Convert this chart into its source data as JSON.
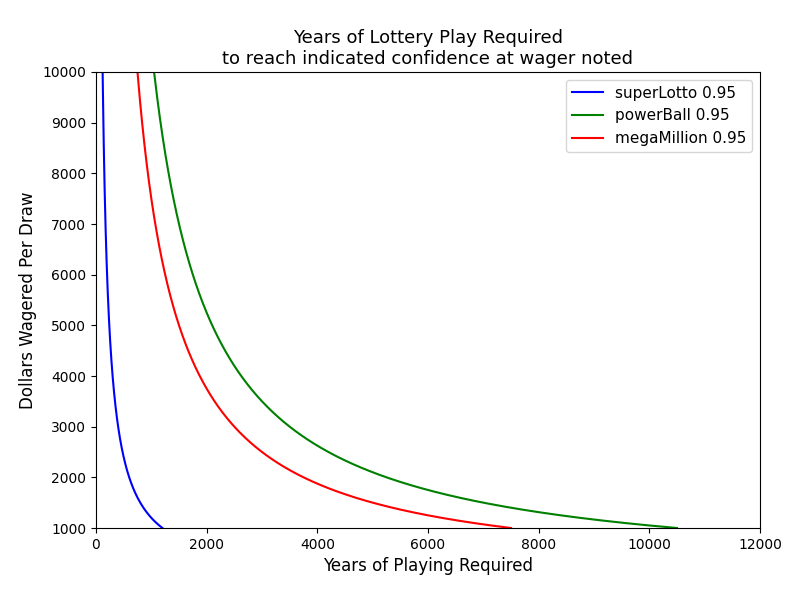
{
  "title_line1": "Years of Lottery Play Required",
  "title_line2": "to reach indicated confidence at wager noted",
  "xlabel": "Years of Playing Required",
  "ylabel": "Dollars Wagered Per Draw",
  "xlim": [
    0,
    12000
  ],
  "ylim": [
    1000,
    10000
  ],
  "yticks": [
    1000,
    2000,
    3000,
    4000,
    5000,
    6000,
    7000,
    8000,
    9000,
    10000
  ],
  "xticks": [
    0,
    2000,
    4000,
    6000,
    8000,
    10000,
    12000
  ],
  "confidence": 0.95,
  "series": [
    {
      "name": "superLotto 0.95",
      "color": "blue",
      "k": 1200000
    },
    {
      "name": "powerBall 0.95",
      "color": "green",
      "k": 10500000
    },
    {
      "name": "megaMillion 0.95",
      "color": "red",
      "k": 7500000
    }
  ],
  "background_color": "#ffffff",
  "figsize": [
    8.0,
    6.0
  ],
  "dpi": 100
}
